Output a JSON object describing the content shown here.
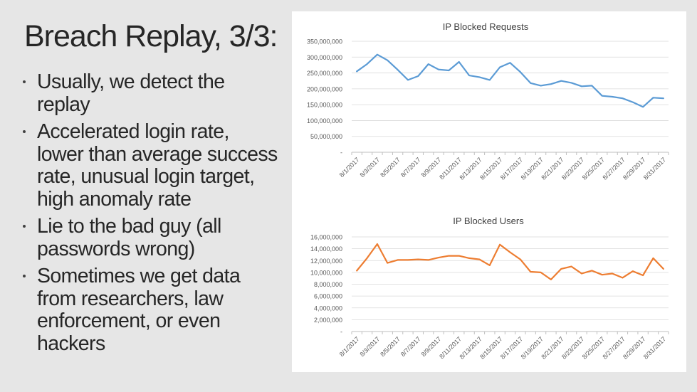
{
  "slide": {
    "title": "Breach Replay, 3/3:",
    "bullets": [
      [
        "Usually, we detect the",
        "replay"
      ],
      [
        "Accelerated login rate,",
        "lower than average success",
        "rate, unusual login target,",
        "high anomaly rate"
      ],
      [
        "Lie to the bad guy (all",
        "passwords wrong)"
      ],
      [
        "Sometimes we get data",
        "from researchers, law",
        "enforcement, or even",
        "hackers"
      ]
    ]
  },
  "colors": {
    "requests_line": "#5b9bd5",
    "users_line": "#ed7d31",
    "axis_text": "#595959",
    "gridline": "#d9d9d9"
  },
  "chart_data": [
    {
      "type": "line",
      "title": "IP Blocked Requests",
      "x": [
        "8/1/2017",
        "8/2/2017",
        "8/3/2017",
        "8/4/2017",
        "8/5/2017",
        "8/6/2017",
        "8/7/2017",
        "8/8/2017",
        "8/9/2017",
        "8/10/2017",
        "8/11/2017",
        "8/12/2017",
        "8/13/2017",
        "8/14/2017",
        "8/15/2017",
        "8/16/2017",
        "8/17/2017",
        "8/18/2017",
        "8/19/2017",
        "8/20/2017",
        "8/21/2017",
        "8/22/2017",
        "8/23/2017",
        "8/24/2017",
        "8/25/2017",
        "8/26/2017",
        "8/27/2017",
        "8/28/2017",
        "8/29/2017",
        "8/30/2017",
        "8/31/2017"
      ],
      "x_tick_labels": [
        "8/1/2017",
        "8/3/2017",
        "8/5/2017",
        "8/7/2017",
        "8/9/2017",
        "8/11/2017",
        "8/13/2017",
        "8/15/2017",
        "8/17/2017",
        "8/19/2017",
        "8/21/2017",
        "8/23/2017",
        "8/25/2017",
        "8/27/2017",
        "8/29/2017",
        "8/31/2017"
      ],
      "series": [
        {
          "values": [
            255000000,
            278000000,
            308000000,
            290000000,
            260000000,
            228000000,
            240000000,
            278000000,
            261000000,
            258000000,
            285000000,
            242000000,
            237000000,
            228000000,
            268000000,
            282000000,
            253000000,
            218000000,
            210000000,
            215000000,
            225000000,
            219000000,
            208000000,
            210000000,
            178000000,
            175000000,
            170000000,
            158000000,
            143000000,
            172000000,
            170000000
          ]
        }
      ],
      "y_tick_labels": [
        "350,000,000",
        "300,000,000",
        "250,000,000",
        "200,000,000",
        "150,000,000",
        "100,000,000",
        "50,000,000",
        "-"
      ],
      "ylim": [
        0,
        350000000
      ],
      "grid": true,
      "xlabel": "",
      "ylabel": ""
    },
    {
      "type": "line",
      "title": "IP Blocked Users",
      "x": [
        "8/1/2017",
        "8/2/2017",
        "8/3/2017",
        "8/4/2017",
        "8/5/2017",
        "8/6/2017",
        "8/7/2017",
        "8/8/2017",
        "8/9/2017",
        "8/10/2017",
        "8/11/2017",
        "8/12/2017",
        "8/13/2017",
        "8/14/2017",
        "8/15/2017",
        "8/16/2017",
        "8/17/2017",
        "8/18/2017",
        "8/19/2017",
        "8/20/2017",
        "8/21/2017",
        "8/22/2017",
        "8/23/2017",
        "8/24/2017",
        "8/25/2017",
        "8/26/2017",
        "8/27/2017",
        "8/28/2017",
        "8/29/2017",
        "8/30/2017",
        "8/31/2017"
      ],
      "x_tick_labels": [
        "8/1/2017",
        "8/3/2017",
        "8/5/2017",
        "8/7/2017",
        "8/9/2017",
        "8/11/2017",
        "8/13/2017",
        "8/15/2017",
        "8/17/2017",
        "8/19/2017",
        "8/21/2017",
        "8/23/2017",
        "8/25/2017",
        "8/27/2017",
        "8/29/2017",
        "8/31/2017"
      ],
      "series": [
        {
          "values": [
            10300000,
            12400000,
            14800000,
            11600000,
            12100000,
            12100000,
            12200000,
            12100000,
            12500000,
            12800000,
            12800000,
            12400000,
            12200000,
            11200000,
            14700000,
            13400000,
            12200000,
            10100000,
            10000000,
            8800000,
            10600000,
            11000000,
            9800000,
            10300000,
            9600000,
            9800000,
            9100000,
            10200000,
            9500000,
            12400000,
            10600000
          ]
        }
      ],
      "y_tick_labels": [
        "16,000,000",
        "14,000,000",
        "12,000,000",
        "10,000,000",
        "8,000,000",
        "6,000,000",
        "4,000,000",
        "2,000,000",
        "-"
      ],
      "ylim": [
        0,
        16000000
      ],
      "grid": true,
      "xlabel": "",
      "ylabel": ""
    }
  ]
}
